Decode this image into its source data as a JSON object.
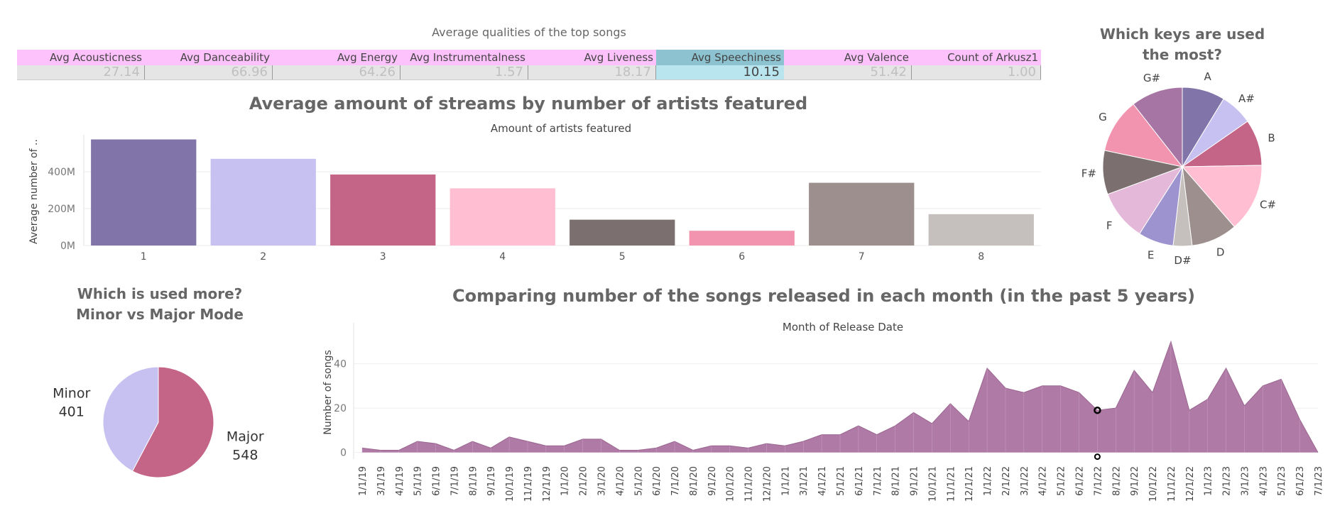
{
  "dashboard": {
    "qualities_title": "Average qualities of the top songs",
    "streams_title": "Average amount of streams by number of artists featured",
    "keys_title_line1": "Which keys are used",
    "keys_title_line2": "the most?",
    "mode_title_line1": "Which is used more?",
    "mode_title_line2": "Minor vs Major Mode",
    "monthly_title": "Comparing number of the songs released in each month (in the past 5 years)"
  },
  "qualities_table": {
    "headers": [
      "Avg Acousticness",
      "Avg Danceability",
      "Avg Energy",
      "Avg Instrumentalness",
      "Avg Liveness",
      "Avg Speechiness",
      "Avg Valence",
      "Count of Arkusz1"
    ],
    "values": [
      "27.14",
      "66.96",
      "64.26",
      "1.57",
      "18.17",
      "10.15",
      "51.42",
      "1.00"
    ],
    "highlighted_index": 5,
    "colors": {
      "header": "#fdc2fb",
      "highlight_header": "#8dc2d0",
      "highlight_value": "#b9e5ee",
      "value_row": "#e5e5e5"
    }
  },
  "chart_data": [
    {
      "type": "bar",
      "title": "Average amount of streams by number of artists featured",
      "xlabel": "Amount of artists featured",
      "ylabel": "Average number of ..",
      "categories": [
        "1",
        "2",
        "3",
        "4",
        "5",
        "6",
        "7",
        "8"
      ],
      "values": [
        575000000,
        470000000,
        385000000,
        310000000,
        140000000,
        80000000,
        340000000,
        170000000
      ],
      "yticks": [
        0,
        200000000,
        400000000
      ],
      "ytick_labels": [
        "0M",
        "200M",
        "400M"
      ],
      "ylim": [
        0,
        600000000
      ],
      "colors": [
        "#8074a8",
        "#c6c1f0",
        "#c46487",
        "#ffbed1",
        "#7b6f6f",
        "#f294b0",
        "#9c8f8d",
        "#c5bfbe"
      ],
      "grid": true
    },
    {
      "type": "pie",
      "title": "Which keys are used the most?",
      "labels": [
        "A",
        "A#",
        "B",
        "C#",
        "D",
        "D#",
        "E",
        "F",
        "F#",
        "G",
        "G#"
      ],
      "values": [
        75,
        57,
        81,
        120,
        81,
        33,
        62,
        89,
        77,
        96,
        91
      ],
      "colors": [
        "#8074a8",
        "#c6c1f0",
        "#c46487",
        "#ffbed1",
        "#9c8f8d",
        "#c5bfbe",
        "#9d93ce",
        "#e4b8d9",
        "#7b6f6f",
        "#f294b0",
        "#a675a3"
      ]
    },
    {
      "type": "pie",
      "title": "Which is used more? Minor vs Major Mode",
      "labels": [
        "Major",
        "Minor"
      ],
      "values": [
        548,
        401
      ],
      "colors": [
        "#c46487",
        "#c6c1f0"
      ]
    },
    {
      "type": "area",
      "title": "Comparing number of the songs released in each month (in the past 5 years)",
      "xlabel": "Month of Release Date",
      "ylabel": "Number of songs",
      "x": [
        "1/1/19",
        "3/1/19",
        "4/1/19",
        "5/1/19",
        "6/1/19",
        "7/1/19",
        "8/1/19",
        "9/1/19",
        "10/1/19",
        "11/1/19",
        "12/1/19",
        "1/1/20",
        "2/1/20",
        "3/1/20",
        "4/1/20",
        "5/1/20",
        "6/1/20",
        "7/1/20",
        "8/1/20",
        "9/1/20",
        "10/1/20",
        "11/1/20",
        "12/1/20",
        "1/1/21",
        "3/1/21",
        "4/1/21",
        "5/1/21",
        "6/1/21",
        "7/1/21",
        "8/1/21",
        "9/1/21",
        "10/1/21",
        "11/1/21",
        "12/1/21",
        "1/1/22",
        "2/1/22",
        "3/1/22",
        "4/1/22",
        "5/1/22",
        "6/1/22",
        "7/1/22",
        "8/1/22",
        "9/1/22",
        "10/1/22",
        "11/1/22",
        "12/1/22",
        "1/1/23",
        "2/1/23",
        "3/1/23",
        "4/1/23",
        "5/1/23",
        "6/1/23",
        "7/1/23"
      ],
      "y": [
        2,
        1,
        1,
        5,
        4,
        1,
        5,
        2,
        7,
        5,
        3,
        3,
        6,
        6,
        1,
        1,
        2,
        5,
        1,
        3,
        3,
        2,
        4,
        3,
        5,
        8,
        8,
        12,
        8,
        12,
        18,
        13,
        22,
        14,
        38,
        29,
        27,
        30,
        30,
        27,
        19,
        20,
        37,
        27,
        50,
        19,
        24,
        38,
        21,
        30,
        33,
        15,
        0
      ],
      "yticks": [
        0,
        20,
        40
      ],
      "ylim": [
        -3,
        52
      ],
      "highlighted_x": "7/1/22",
      "color": "#b07aa6",
      "grid": true
    }
  ]
}
